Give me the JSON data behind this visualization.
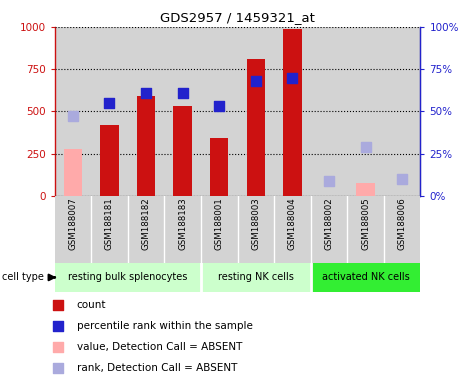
{
  "title": "GDS2957 / 1459321_at",
  "samples": [
    "GSM188007",
    "GSM188181",
    "GSM188182",
    "GSM188183",
    "GSM188001",
    "GSM188003",
    "GSM188004",
    "GSM188002",
    "GSM188005",
    "GSM188006"
  ],
  "bar_values": [
    null,
    420,
    590,
    530,
    340,
    810,
    990,
    null,
    null,
    null
  ],
  "bar_absent_values": [
    275,
    null,
    null,
    null,
    null,
    null,
    null,
    null,
    75,
    null
  ],
  "rank_values_pct": [
    null,
    55,
    61,
    61,
    53,
    68,
    70,
    null,
    null,
    null
  ],
  "rank_absent_values_pct": [
    47,
    null,
    null,
    null,
    null,
    null,
    null,
    9,
    29,
    10
  ],
  "bar_color": "#cc1111",
  "bar_absent_color": "#ffaaaa",
  "rank_color": "#2222cc",
  "rank_absent_color": "#aaaadd",
  "ylim_left": [
    0,
    1000
  ],
  "ylim_right": [
    0,
    100
  ],
  "yticks_left": [
    0,
    250,
    500,
    750,
    1000
  ],
  "ytick_labels_left": [
    "0",
    "250",
    "500",
    "750",
    "1000"
  ],
  "yticks_right": [
    0,
    25,
    50,
    75,
    100
  ],
  "ytick_labels_right": [
    "0%",
    "25%",
    "50%",
    "75%",
    "100%"
  ],
  "group_starts": [
    0,
    4,
    7
  ],
  "group_ends": [
    4,
    7,
    10
  ],
  "group_labels": [
    "resting bulk splenocytes",
    "resting NK cells",
    "activated NK cells"
  ],
  "group_colors": [
    "#ccffcc",
    "#ccffcc",
    "#33ee33"
  ],
  "legend_items": [
    {
      "color": "#cc1111",
      "label": "count"
    },
    {
      "color": "#2222cc",
      "label": "percentile rank within the sample"
    },
    {
      "color": "#ffaaaa",
      "label": "value, Detection Call = ABSENT"
    },
    {
      "color": "#aaaadd",
      "label": "rank, Detection Call = ABSENT"
    }
  ],
  "sample_bg_color": "#d3d3d3",
  "celltype_row_color": "#d3d3d3"
}
